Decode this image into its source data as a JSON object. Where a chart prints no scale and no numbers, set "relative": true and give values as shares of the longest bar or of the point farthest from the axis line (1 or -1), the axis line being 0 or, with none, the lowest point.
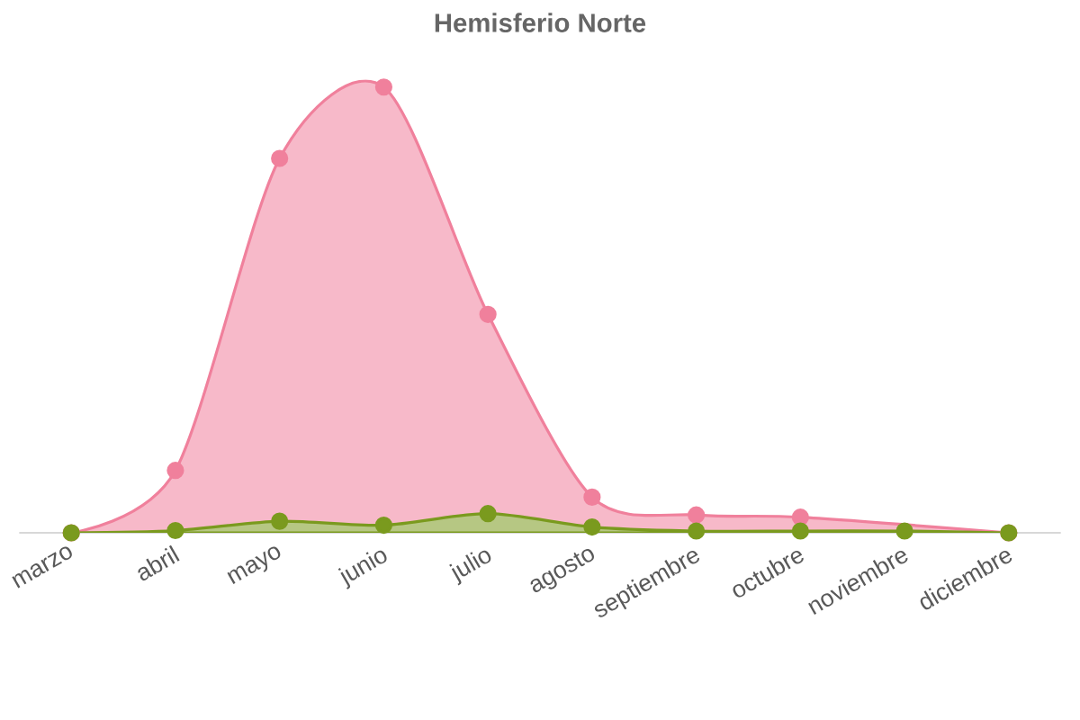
{
  "chart_data": {
    "type": "area",
    "title": "Hemisferio Norte",
    "relative": true,
    "marker": "circle",
    "categories": [
      "marzo",
      "abril",
      "mayo",
      "junio",
      "julio",
      "agosto",
      "septiembre",
      "octubre",
      "noviembre",
      "diciembre"
    ],
    "series": [
      {
        "color": "#f0809c",
        "values": [
          0,
          0.14,
          0.84,
          1,
          0.49,
          0.08,
          0.04,
          0.035,
          null,
          0
        ]
      },
      {
        "color": "#7a9a1e",
        "values": [
          0,
          0.005,
          0.026,
          0.017,
          0.043,
          0.013,
          0.004,
          0.004,
          0.004,
          0
        ]
      }
    ]
  }
}
